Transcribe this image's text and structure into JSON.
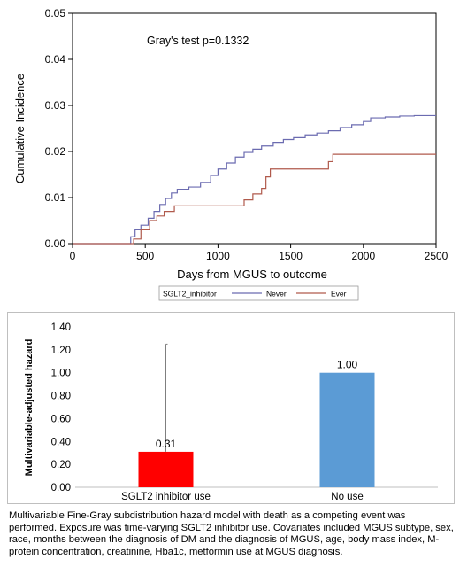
{
  "chart_data": [
    {
      "type": "line",
      "annotation": "Gray's test p=0.1332",
      "xlabel": "Days from MGUS to outcome",
      "ylabel": "Cumulative Incidence",
      "xlim": [
        0,
        2500
      ],
      "ylim": [
        0,
        0.05
      ],
      "xticks": [
        "0",
        "500",
        "1000",
        "1500",
        "2000",
        "2500"
      ],
      "yticks": [
        "0.00",
        "0.01",
        "0.02",
        "0.03",
        "0.04",
        "0.05"
      ],
      "legend_title": "SGLT2_inhibitor",
      "legend_position": "bottom",
      "grid": false,
      "series": [
        {
          "name": "Never",
          "color": "#6b6bb0",
          "x": [
            0,
            370,
            400,
            430,
            470,
            520,
            560,
            600,
            640,
            680,
            720,
            800,
            880,
            950,
            1000,
            1060,
            1120,
            1180,
            1240,
            1300,
            1380,
            1450,
            1520,
            1600,
            1680,
            1760,
            1840,
            1920,
            2000,
            2050,
            2150,
            2250,
            2350,
            2500
          ],
          "y": [
            0,
            0,
            0.0015,
            0.003,
            0.004,
            0.0055,
            0.007,
            0.0085,
            0.0098,
            0.011,
            0.0118,
            0.0123,
            0.0133,
            0.0148,
            0.0162,
            0.0175,
            0.0188,
            0.0198,
            0.0205,
            0.0212,
            0.022,
            0.0226,
            0.023,
            0.0236,
            0.024,
            0.0245,
            0.0252,
            0.0258,
            0.0265,
            0.0273,
            0.0275,
            0.0277,
            0.0278,
            0.0278
          ]
        },
        {
          "name": "Ever",
          "color": "#b05a4c",
          "x": [
            0,
            390,
            420,
            470,
            530,
            580,
            630,
            700,
            1030,
            1130,
            1180,
            1240,
            1300,
            1330,
            1360,
            1480,
            1690,
            1760,
            1790,
            2500
          ],
          "y": [
            0,
            0,
            0.001,
            0.003,
            0.005,
            0.006,
            0.007,
            0.0082,
            0.0082,
            0.0082,
            0.0095,
            0.0108,
            0.012,
            0.0145,
            0.0162,
            0.0162,
            0.0162,
            0.0178,
            0.0194,
            0.0194
          ]
        }
      ]
    },
    {
      "type": "bar",
      "ylabel": "Multivariable-adjusted  hazard",
      "categories": [
        "SGLT2 inhibitor use",
        "No use"
      ],
      "values": [
        0.31,
        1.0
      ],
      "value_labels": [
        "0.31",
        "1.00"
      ],
      "colors": [
        "#ff0000",
        "#5b9bd5"
      ],
      "error_bar_upper": [
        1.25,
        null
      ],
      "ylim": [
        0,
        1.4
      ],
      "yticks": [
        "0.00",
        "0.20",
        "0.40",
        "0.60",
        "0.80",
        "1.00",
        "1.20",
        "1.40"
      ],
      "grid": false
    }
  ],
  "caption": "Multivariable Fine-Gray subdistribution hazard model with death as a competing event was performed. Exposure was time-varying SGLT2 inhibitor use. Covariates included MGUS subtype, sex, race, months between the diagnosis of DM and the diagnosis of MGUS, age, body mass index, M-protein concentration, creatinine, Hba1c, metformin use at MGUS diagnosis."
}
